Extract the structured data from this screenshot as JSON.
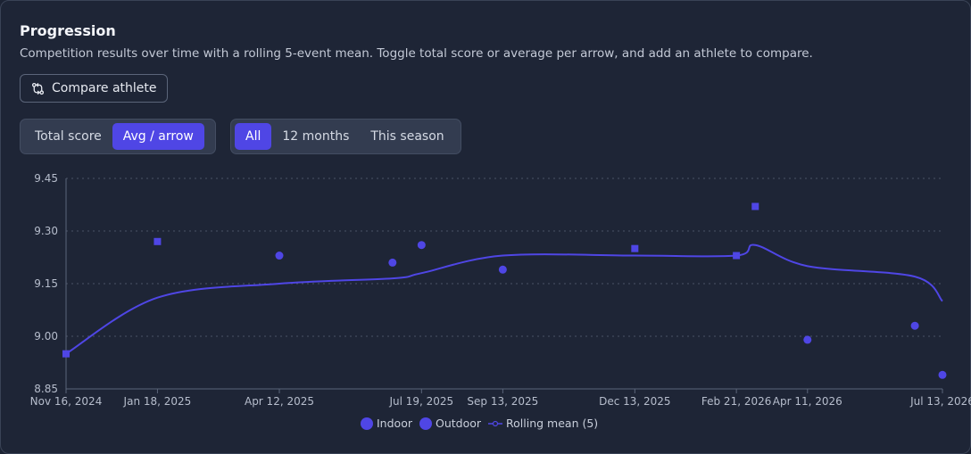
{
  "header": {
    "title": "Progression",
    "subtitle": "Competition results over time with a rolling 5-event mean. Toggle total score or average per arrow, and add an athlete to compare."
  },
  "compare_button": {
    "label": "Compare athlete",
    "icon": "compare-arrows-icon"
  },
  "metric_toggle": {
    "options": [
      "Total score",
      "Avg / arrow"
    ],
    "selected": "Avg / arrow"
  },
  "range_toggle": {
    "options": [
      "All",
      "12 months",
      "This season"
    ],
    "selected": "All"
  },
  "colors": {
    "accent": "#4f46e5",
    "background": "#1e2536",
    "grid": "#4a5366"
  },
  "chart_data": {
    "type": "scatter",
    "ylim": [
      8.85,
      9.45
    ],
    "y_ticks": [
      "9.45",
      "9.30",
      "9.15",
      "9.00",
      "8.85"
    ],
    "y_tick_values": [
      9.45,
      9.3,
      9.15,
      9.0,
      8.85
    ],
    "x_range": [
      "2024-11-16",
      "2026-07-13"
    ],
    "x_ticks": [
      {
        "date": "2024-11-16",
        "label": "Nov 16, 2024"
      },
      {
        "date": "2025-01-18",
        "label": "Jan 18, 2025"
      },
      {
        "date": "2025-04-12",
        "label": "Apr 12, 2025"
      },
      {
        "date": "2025-07-19",
        "label": "Jul 19, 2025"
      },
      {
        "date": "2025-09-13",
        "label": "Sep 13, 2025"
      },
      {
        "date": "2025-12-13",
        "label": "Dec 13, 2025"
      },
      {
        "date": "2026-02-21",
        "label": "Feb 21, 2026"
      },
      {
        "date": "2026-04-11",
        "label": "Apr 11, 2026"
      },
      {
        "date": "2026-07-13",
        "label": "Jul 13, 2026"
      }
    ],
    "grid": true,
    "legend_position": "bottom-center",
    "series": [
      {
        "name": "Indoor",
        "marker": "square",
        "points": [
          {
            "x": "2024-11-16",
            "y": 8.95
          },
          {
            "x": "2025-01-18",
            "y": 9.27
          },
          {
            "x": "2025-12-13",
            "y": 9.25
          },
          {
            "x": "2026-02-21",
            "y": 9.23
          },
          {
            "x": "2026-03-06",
            "y": 9.37
          }
        ]
      },
      {
        "name": "Outdoor",
        "marker": "circle",
        "points": [
          {
            "x": "2025-04-12",
            "y": 9.23
          },
          {
            "x": "2025-06-29",
            "y": 9.21
          },
          {
            "x": "2025-07-19",
            "y": 9.26
          },
          {
            "x": "2025-09-13",
            "y": 9.19
          },
          {
            "x": "2026-04-11",
            "y": 8.99
          },
          {
            "x": "2026-06-24",
            "y": 9.03
          },
          {
            "x": "2026-07-13",
            "y": 8.89
          }
        ]
      },
      {
        "name": "Rolling mean (5)",
        "marker": "line",
        "points": [
          {
            "x": "2024-11-16",
            "y": 8.95
          },
          {
            "x": "2025-01-18",
            "y": 9.11
          },
          {
            "x": "2025-04-12",
            "y": 9.15
          },
          {
            "x": "2025-06-29",
            "y": 9.165
          },
          {
            "x": "2025-07-19",
            "y": 9.18
          },
          {
            "x": "2025-09-13",
            "y": 9.23
          },
          {
            "x": "2025-12-13",
            "y": 9.23
          },
          {
            "x": "2026-02-21",
            "y": 9.23
          },
          {
            "x": "2026-03-06",
            "y": 9.26
          },
          {
            "x": "2026-04-11",
            "y": 9.2
          },
          {
            "x": "2026-06-24",
            "y": 9.17
          },
          {
            "x": "2026-07-13",
            "y": 9.1
          }
        ]
      }
    ]
  }
}
